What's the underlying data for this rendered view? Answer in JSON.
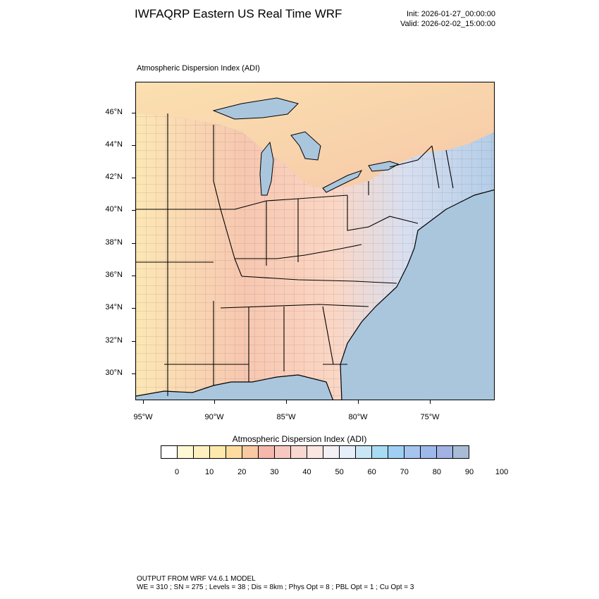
{
  "header": {
    "title": "IWFAQRP Eastern US Real Time WRF",
    "init": "Init: 2026-01-27_00:00:00",
    "valid": "Valid: 2026-02-02_15:00:00"
  },
  "panel": {
    "title": "Atmospheric Dispersion Index   (ADI)"
  },
  "map": {
    "lat_labels": [
      "46°N",
      "44°N",
      "42°N",
      "40°N",
      "38°N",
      "36°N",
      "34°N",
      "32°N",
      "30°N"
    ],
    "lon_labels": [
      "95°W",
      "90°W",
      "85°W",
      "80°W",
      "75°W"
    ],
    "colors": {
      "ocean": "#a9c6dd",
      "land_warm": "#f6c9b4",
      "land_yellow": "#fde9b0",
      "land_blue": "#b5cfe8",
      "lake": "#a9c6dd",
      "boundary": "#000000"
    }
  },
  "colorbar": {
    "title": "Atmospheric Dispersion Index  (ADI)",
    "labels": [
      "0",
      "10",
      "20",
      "30",
      "40",
      "50",
      "60",
      "70",
      "80",
      "90",
      "100"
    ],
    "colors": [
      "#ffffff",
      "#fff8d4",
      "#fff0c0",
      "#fee9ad",
      "#fddca0",
      "#f9c9a4",
      "#f6b8ac",
      "#f7c8c0",
      "#f9d8d2",
      "#fbe6e2",
      "#f4f0f6",
      "#e6eefa",
      "#c8e6f6",
      "#a8dcf4",
      "#9fd0f4",
      "#a6c4ee",
      "#9db8ea",
      "#a2b2e2",
      "#a9bcd6"
    ]
  },
  "footer": {
    "line1": "OUTPUT FROM WRF V4.6.1 MODEL",
    "line2": "WE = 310 ; SN = 275 ; Levels = 38 ; Dis = 8km ; Phys Opt = 8 ; PBL Opt = 1 ; Cu Opt = 3"
  }
}
